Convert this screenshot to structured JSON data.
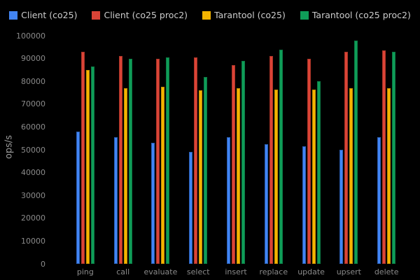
{
  "chart_data": {
    "type": "bar",
    "title": "",
    "xlabel": "",
    "ylabel": "ops/s",
    "ylim": [
      0,
      100000
    ],
    "ytick_step": 10000,
    "grid": false,
    "legend_position": "top",
    "background_color": "#000000",
    "tick_text_color": "#8a8a8a",
    "legend_text_color": "#cccccc",
    "categories": [
      "ping",
      "call",
      "evaluate",
      "select",
      "insert",
      "replace",
      "update",
      "upsert",
      "delete"
    ],
    "series": [
      {
        "id": "client-co25",
        "name": "Client (co25)",
        "color": "#4285F4",
        "edge_color": "#2a5db0",
        "values": [
          58000,
          55500,
          53000,
          49000,
          55500,
          52500,
          51500,
          50000,
          55500
        ]
      },
      {
        "id": "client-co25-proc2",
        "name": "Client (co25 proc2)",
        "color": "#DB4437",
        "edge_color": "#a83327",
        "values": [
          93000,
          91000,
          90000,
          90500,
          87000,
          91000,
          90000,
          93000,
          93500
        ]
      },
      {
        "id": "tarantool-co25",
        "name": "Tarantool (co25)",
        "color": "#F4B400",
        "edge_color": "#c28d00",
        "values": [
          85000,
          77000,
          77500,
          76000,
          77000,
          76500,
          76500,
          77000,
          77000
        ]
      },
      {
        "id": "tarantool-co25-proc2",
        "name": "Tarantool (co25 proc2)",
        "color": "#0F9D58",
        "edge_color": "#0b7a44",
        "values": [
          86500,
          90000,
          90500,
          82000,
          89000,
          94000,
          80000,
          98000,
          93000
        ]
      }
    ]
  }
}
